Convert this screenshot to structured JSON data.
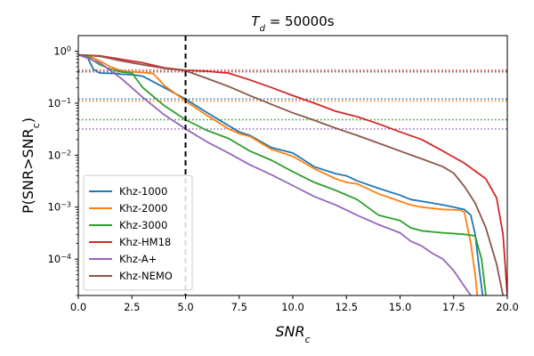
{
  "chart_data": {
    "type": "line",
    "title_prefix": "T",
    "title_sub": "d",
    "title_suffix": " = 50000s",
    "xlabel_main": "SNR",
    "xlabel_sub": "c",
    "ylabel_text": "P(SNR>SNR",
    "ylabel_sub": "c",
    "ylabel_close": ")",
    "xlim": [
      0,
      20
    ],
    "ylim_log10": [
      -4.7,
      0.3
    ],
    "x_ticks": [
      0,
      2.5,
      5,
      7.5,
      10,
      12.5,
      15,
      17.5,
      20
    ],
    "x_tick_labels": [
      "0.0",
      "2.5",
      "5.0",
      "7.5",
      "10.0",
      "12.5",
      "15.0",
      "17.5",
      "20.0"
    ],
    "y_ticks_log10": [
      0,
      -1,
      -2,
      -3,
      -4
    ],
    "y_tick_bases": [
      "10",
      "10",
      "10",
      "10",
      "10"
    ],
    "y_tick_exps": [
      "0",
      "−1",
      "−2",
      "−3",
      "−4"
    ],
    "vline_x": 5.0,
    "series": [
      {
        "name": "Khz-1000",
        "color": "#1f77b4",
        "points": [
          [
            0,
            0.85
          ],
          [
            0.4,
            0.8
          ],
          [
            0.7,
            0.45
          ],
          [
            1,
            0.38
          ],
          [
            1.8,
            0.37
          ],
          [
            2,
            0.36
          ],
          [
            2.6,
            0.35
          ],
          [
            3,
            0.33
          ],
          [
            4,
            0.2
          ],
          [
            5,
            0.12
          ],
          [
            6,
            0.066
          ],
          [
            7,
            0.037
          ],
          [
            7.5,
            0.028
          ],
          [
            8,
            0.024
          ],
          [
            9,
            0.014
          ],
          [
            10,
            0.011
          ],
          [
            11,
            0.006
          ],
          [
            12,
            0.0044
          ],
          [
            12.5,
            0.004
          ],
          [
            13,
            0.0032
          ],
          [
            14,
            0.0023
          ],
          [
            15,
            0.0017
          ],
          [
            15.5,
            0.0014
          ],
          [
            16,
            0.0013
          ],
          [
            16.5,
            0.0012
          ],
          [
            17,
            0.0011
          ],
          [
            17.5,
            0.001
          ],
          [
            18,
            0.0009
          ],
          [
            18.3,
            0.0007
          ],
          [
            18.5,
            0.0003
          ],
          [
            18.7,
            6e-05
          ],
          [
            18.85,
            2e-05
          ]
        ]
      },
      {
        "name": "Khz-2000",
        "color": "#ff7f0e",
        "points": [
          [
            0,
            0.85
          ],
          [
            0.5,
            0.8
          ],
          [
            1,
            0.65
          ],
          [
            1.5,
            0.5
          ],
          [
            2,
            0.42
          ],
          [
            2.5,
            0.4
          ],
          [
            3,
            0.39
          ],
          [
            3.5,
            0.37
          ],
          [
            4,
            0.22
          ],
          [
            5,
            0.11
          ],
          [
            6,
            0.058
          ],
          [
            7,
            0.032
          ],
          [
            7.5,
            0.026
          ],
          [
            8,
            0.023
          ],
          [
            9,
            0.013
          ],
          [
            10,
            0.0095
          ],
          [
            11,
            0.0055
          ],
          [
            12,
            0.0035
          ],
          [
            12.5,
            0.003
          ],
          [
            13,
            0.0028
          ],
          [
            14,
            0.0018
          ],
          [
            15,
            0.0013
          ],
          [
            15.5,
            0.0011
          ],
          [
            16,
            0.001
          ],
          [
            17,
            0.0009
          ],
          [
            17.8,
            0.00088
          ],
          [
            18,
            0.0008
          ],
          [
            18.3,
            0.0002
          ],
          [
            18.5,
            5e-05
          ],
          [
            18.6,
            2e-05
          ]
        ]
      },
      {
        "name": "Khz-3000",
        "color": "#2ca02c",
        "points": [
          [
            0,
            0.85
          ],
          [
            0.5,
            0.75
          ],
          [
            1,
            0.55
          ],
          [
            1.5,
            0.45
          ],
          [
            2,
            0.4
          ],
          [
            2.5,
            0.38
          ],
          [
            3,
            0.2
          ],
          [
            4,
            0.09
          ],
          [
            5,
            0.048
          ],
          [
            6,
            0.03
          ],
          [
            7,
            0.021
          ],
          [
            8,
            0.012
          ],
          [
            9,
            0.008
          ],
          [
            10,
            0.0048
          ],
          [
            11,
            0.003
          ],
          [
            12,
            0.0021
          ],
          [
            13,
            0.0014
          ],
          [
            14,
            0.0007
          ],
          [
            15,
            0.00055
          ],
          [
            15.5,
            0.0004
          ],
          [
            16,
            0.00035
          ],
          [
            17,
            0.00032
          ],
          [
            18,
            0.0003
          ],
          [
            18.5,
            0.00028
          ],
          [
            18.8,
            0.0001
          ],
          [
            19,
            2e-05
          ]
        ]
      },
      {
        "name": "Khz-HM18",
        "color": "#d62728",
        "points": [
          [
            0,
            0.85
          ],
          [
            1,
            0.82
          ],
          [
            2,
            0.7
          ],
          [
            3,
            0.6
          ],
          [
            4,
            0.48
          ],
          [
            5,
            0.43
          ],
          [
            6,
            0.41
          ],
          [
            7,
            0.38
          ],
          [
            8,
            0.28
          ],
          [
            9,
            0.2
          ],
          [
            10,
            0.14
          ],
          [
            11,
            0.1
          ],
          [
            12,
            0.07
          ],
          [
            13,
            0.055
          ],
          [
            14,
            0.04
          ],
          [
            15,
            0.028
          ],
          [
            16,
            0.02
          ],
          [
            17,
            0.012
          ],
          [
            18,
            0.007
          ],
          [
            19,
            0.0035
          ],
          [
            19.5,
            0.0015
          ],
          [
            19.8,
            0.0003
          ],
          [
            20,
            2e-05
          ]
        ]
      },
      {
        "name": "Khz-A+",
        "color": "#9467bd",
        "points": [
          [
            0,
            0.85
          ],
          [
            1,
            0.6
          ],
          [
            2,
            0.3
          ],
          [
            3,
            0.13
          ],
          [
            4,
            0.06
          ],
          [
            5,
            0.032
          ],
          [
            6,
            0.018
          ],
          [
            7,
            0.011
          ],
          [
            8,
            0.0065
          ],
          [
            9,
            0.0042
          ],
          [
            10,
            0.0026
          ],
          [
            11,
            0.0016
          ],
          [
            12,
            0.0011
          ],
          [
            13,
            0.0007
          ],
          [
            14,
            0.00046
          ],
          [
            15,
            0.00032
          ],
          [
            15.5,
            0.00022
          ],
          [
            16,
            0.00018
          ],
          [
            16.5,
            0.00013
          ],
          [
            17,
            0.0001
          ],
          [
            17.5,
            6e-05
          ],
          [
            18,
            3e-05
          ],
          [
            18.3,
            2e-05
          ]
        ]
      },
      {
        "name": "Khz-NEMO",
        "color": "#8c564b",
        "points": [
          [
            0,
            0.85
          ],
          [
            1,
            0.8
          ],
          [
            2,
            0.65
          ],
          [
            3,
            0.55
          ],
          [
            4,
            0.47
          ],
          [
            5,
            0.42
          ],
          [
            6,
            0.3
          ],
          [
            7,
            0.21
          ],
          [
            8,
            0.14
          ],
          [
            9,
            0.095
          ],
          [
            10,
            0.065
          ],
          [
            11,
            0.047
          ],
          [
            12,
            0.033
          ],
          [
            13,
            0.024
          ],
          [
            14,
            0.017
          ],
          [
            15,
            0.012
          ],
          [
            16,
            0.0085
          ],
          [
            17,
            0.006
          ],
          [
            17.5,
            0.0045
          ],
          [
            18,
            0.0025
          ],
          [
            18.5,
            0.0012
          ],
          [
            19,
            0.0004
          ],
          [
            19.5,
            8e-05
          ],
          [
            19.8,
            2e-05
          ]
        ]
      }
    ],
    "hlines": [
      {
        "color": "#d62728",
        "y": 0.43
      },
      {
        "color": "#8c564b",
        "y": 0.4
      },
      {
        "color": "#1f77b4",
        "y": 0.12
      },
      {
        "color": "#ff7f0e",
        "y": 0.11
      },
      {
        "color": "#2ca02c",
        "y": 0.048
      },
      {
        "color": "#9467bd",
        "y": 0.032
      }
    ]
  }
}
